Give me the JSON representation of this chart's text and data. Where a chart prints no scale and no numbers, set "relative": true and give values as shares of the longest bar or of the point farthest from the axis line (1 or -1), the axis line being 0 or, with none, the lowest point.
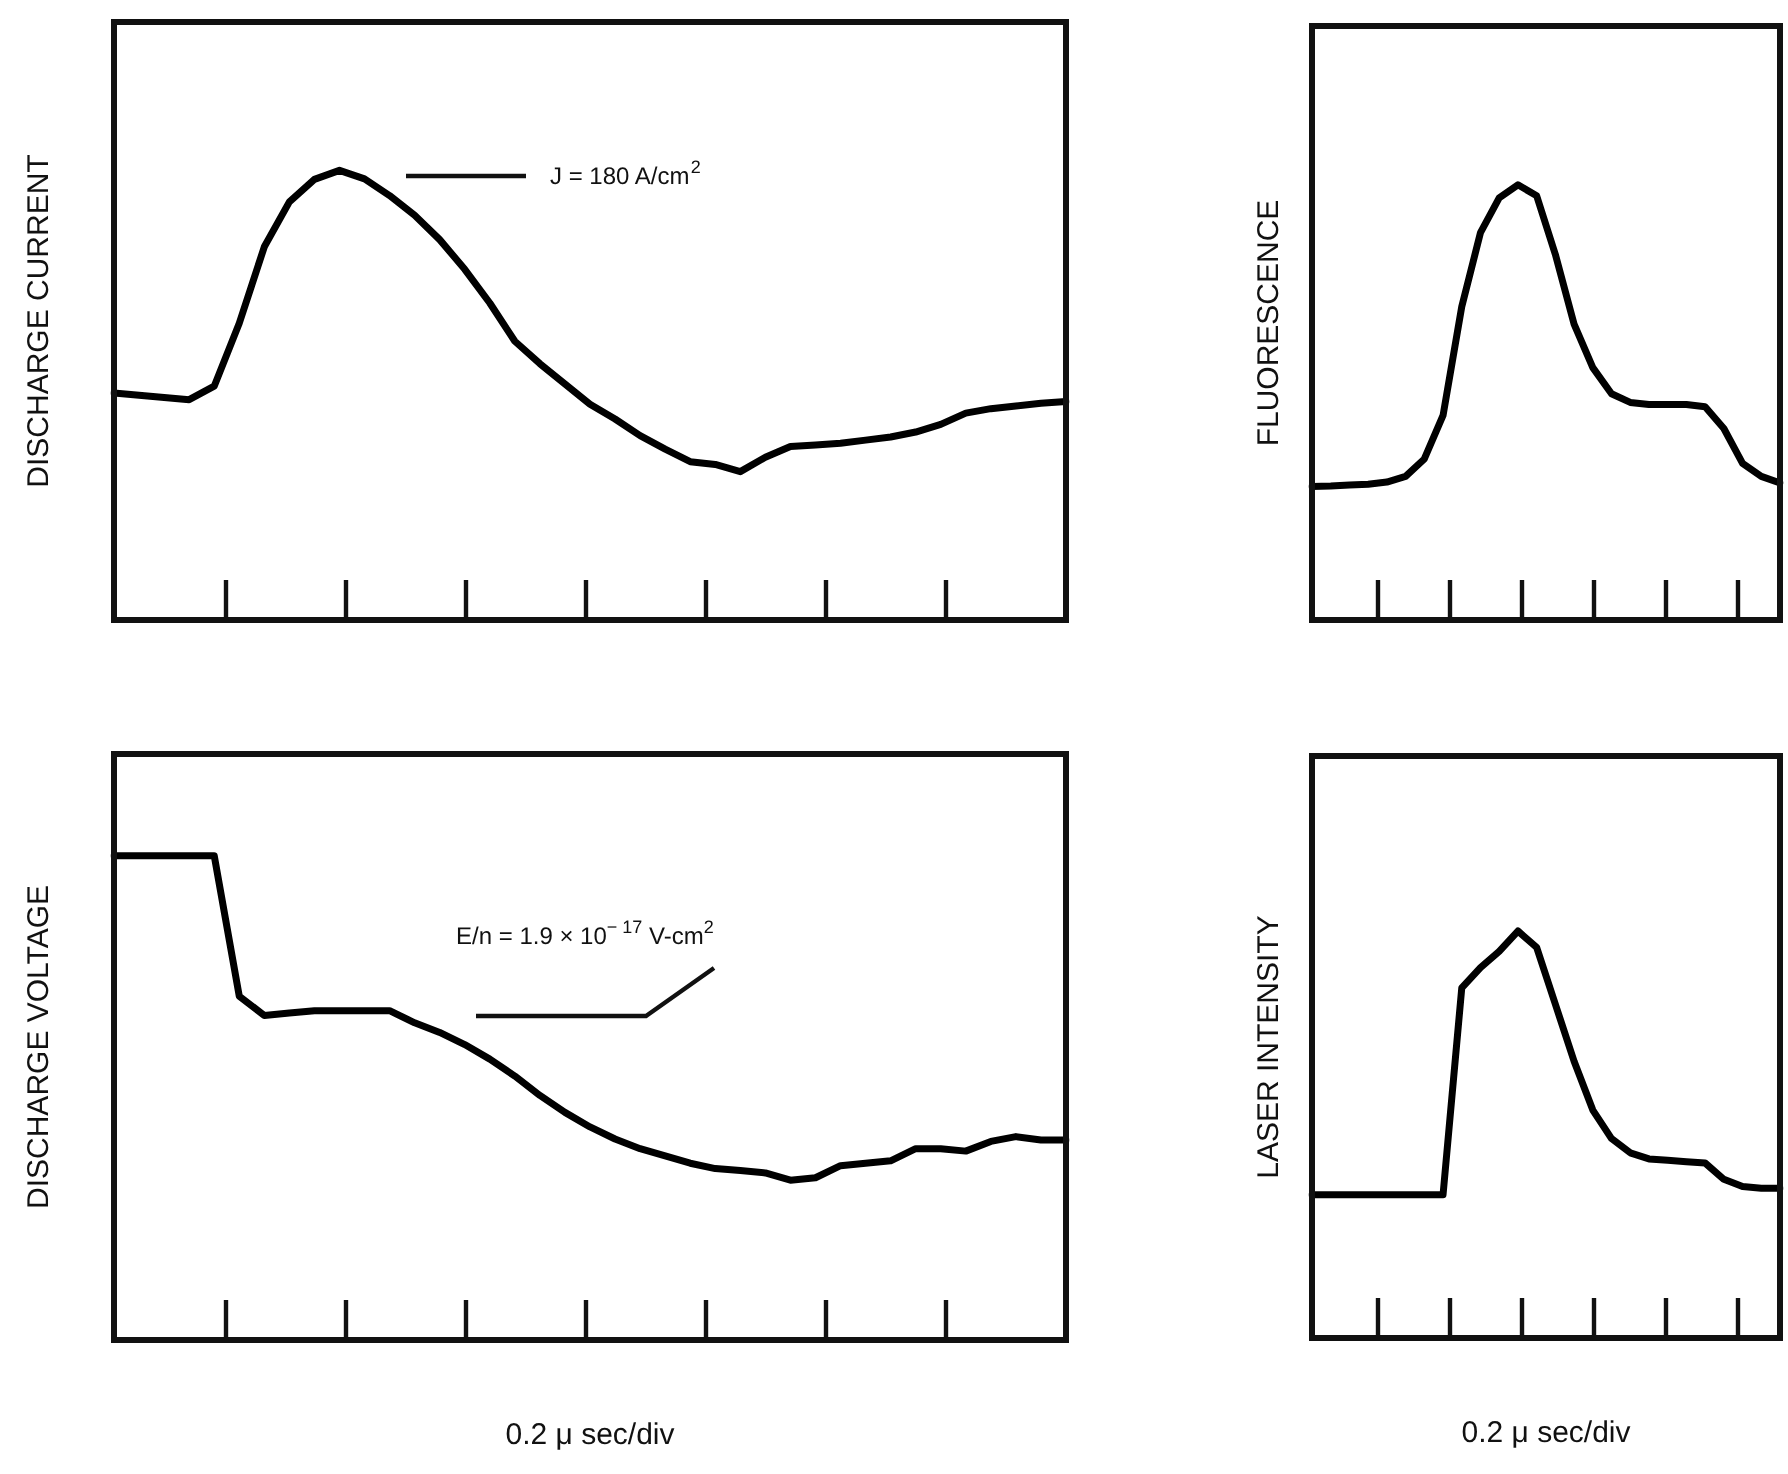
{
  "chart_data": [
    {
      "type": "line",
      "relative": true,
      "ylabel": "DISCHARGE CURRENT",
      "marker": "none",
      "annotations": [
        "J = 180 A/cm$^{2}$"
      ],
      "categories": [
        null,
        null,
        null,
        null,
        null,
        null,
        null,
        null,
        null,
        null,
        null,
        null,
        null,
        null,
        null,
        null,
        null,
        null,
        null,
        null,
        null,
        null,
        null,
        null,
        null,
        null,
        null,
        null,
        null,
        null,
        null,
        null,
        null,
        null,
        null,
        null,
        null,
        null,
        null
      ],
      "series": [
        {
          "color": "#000000",
          "values": [
            0.505,
            0.5,
            0.495,
            0.49,
            0.52,
            0.66,
            0.83,
            0.93,
            0.98,
            1.0,
            0.981,
            0.944,
            0.9,
            0.846,
            0.78,
            0.705,
            0.62,
            0.57,
            0.525,
            0.48,
            0.447,
            0.41,
            0.38,
            0.352,
            0.346,
            0.33,
            0.362,
            0.386,
            0.389,
            0.393,
            0.4,
            0.407,
            0.418,
            0.435,
            0.46,
            0.47,
            0.476,
            0.482,
            0.486
          ]
        }
      ]
    },
    {
      "type": "line",
      "relative": true,
      "ylabel": "DISCHARGE VOLTAGE",
      "xlabel": "0.2 μ sec/div",
      "marker": "none",
      "annotations": [
        "E/n = 1.9 × 10$^{− 17}$ V-cm$^{2}$"
      ],
      "categories": [
        null,
        null,
        null,
        null,
        null,
        null,
        null,
        null,
        null,
        null,
        null,
        null,
        null,
        null,
        null,
        null,
        null,
        null,
        null,
        null,
        null,
        null,
        null,
        null,
        null,
        null,
        null,
        null,
        null,
        null,
        null,
        null,
        null,
        null,
        null,
        null,
        null,
        null,
        null
      ],
      "series": [
        {
          "color": "#000000",
          "values": [
            1.0,
            1.0,
            1.0,
            1.0,
            1.0,
            0.71,
            0.67,
            0.675,
            0.68,
            0.68,
            0.68,
            0.68,
            0.655,
            0.635,
            0.61,
            0.58,
            0.545,
            0.505,
            0.47,
            0.44,
            0.415,
            0.395,
            0.38,
            0.365,
            0.354,
            0.35,
            0.345,
            0.33,
            0.335,
            0.36,
            0.365,
            0.37,
            0.395,
            0.395,
            0.39,
            0.41,
            0.42,
            0.413,
            0.413
          ]
        }
      ]
    },
    {
      "type": "line",
      "relative": true,
      "ylabel": "FLUORESCENCE",
      "marker": "none",
      "categories": [
        null,
        null,
        null,
        null,
        null,
        null,
        null,
        null,
        null,
        null,
        null,
        null,
        null,
        null,
        null,
        null,
        null,
        null,
        null,
        null,
        null,
        null,
        null,
        null,
        null,
        null
      ],
      "series": [
        {
          "color": "#000000",
          "values": [
            0.307,
            0.308,
            0.31,
            0.312,
            0.317,
            0.33,
            0.37,
            0.47,
            0.72,
            0.89,
            0.97,
            1.0,
            0.975,
            0.84,
            0.68,
            0.58,
            0.52,
            0.5,
            0.495,
            0.495,
            0.495,
            0.49,
            0.44,
            0.36,
            0.33,
            0.315
          ]
        }
      ]
    },
    {
      "type": "line",
      "relative": true,
      "ylabel": "LASER INTENSITY",
      "xlabel": "0.2 μ sec/div",
      "marker": "none",
      "categories": [
        null,
        null,
        null,
        null,
        null,
        null,
        null,
        null,
        null,
        null,
        null,
        null,
        null,
        null,
        null,
        null,
        null,
        null,
        null,
        null,
        null,
        null,
        null,
        null,
        null,
        null
      ],
      "series": [
        {
          "color": "#000000",
          "values": [
            0.352,
            0.352,
            0.352,
            0.352,
            0.352,
            0.352,
            0.352,
            0.352,
            0.86,
            0.91,
            0.95,
            1.0,
            0.96,
            0.82,
            0.68,
            0.56,
            0.49,
            0.455,
            0.44,
            0.437,
            0.433,
            0.43,
            0.39,
            0.372,
            0.368,
            0.368
          ]
        }
      ]
    }
  ]
}
